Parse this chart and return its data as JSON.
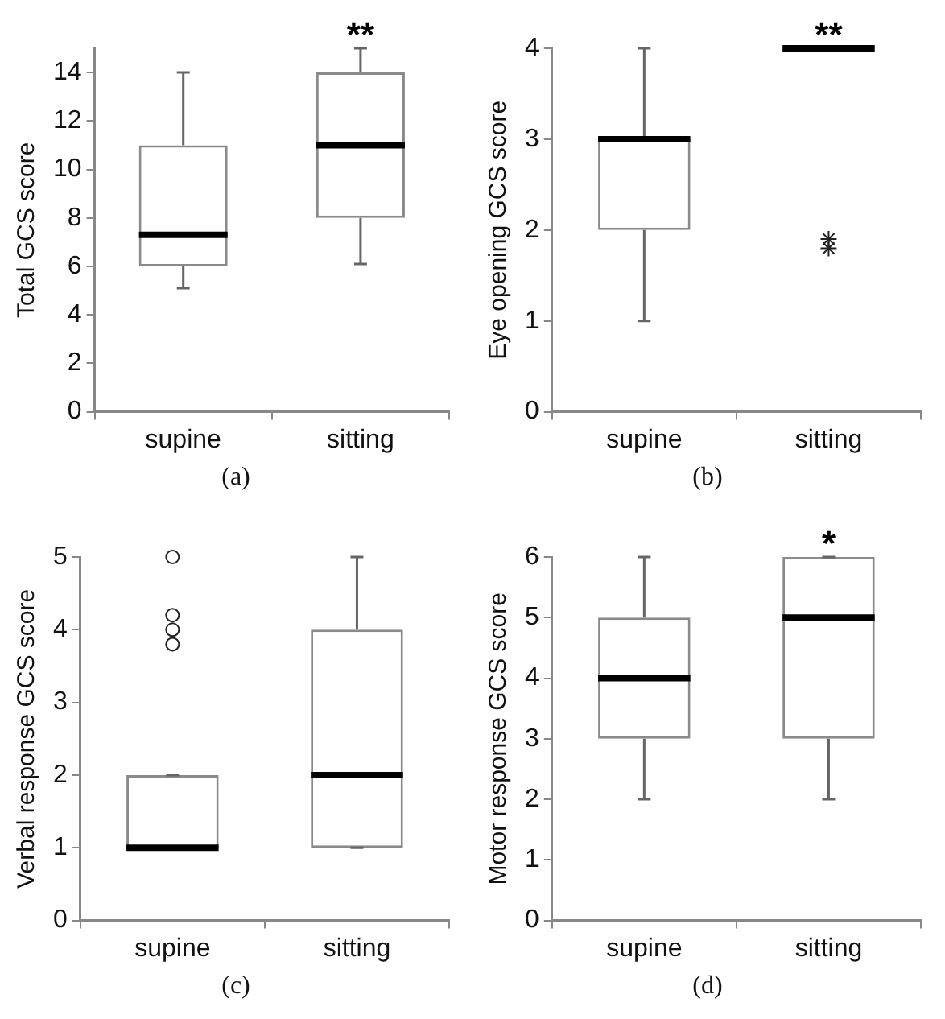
{
  "chart_data": [
    {
      "type": "box",
      "ylabel": "Total GCS score",
      "categories": [
        "supine",
        "sitting"
      ],
      "ylim": [
        0,
        15
      ],
      "yticks": [
        0,
        2,
        4,
        6,
        8,
        10,
        12,
        14
      ],
      "grid": false,
      "legend": false,
      "boxes": [
        {
          "low": 5.1,
          "q1": 6,
          "median": 7.3,
          "q3": 11,
          "high": 14
        },
        {
          "low": 6.1,
          "q1": 8,
          "median": 11,
          "q3": 14,
          "high": 15
        }
      ],
      "annotations": [
        "**",
        "(a)"
      ]
    },
    {
      "type": "box",
      "ylabel": "Eye opening GCS score",
      "categories": [
        "supine",
        "sitting"
      ],
      "ylim": [
        0,
        4
      ],
      "yticks": [
        0,
        1,
        2,
        3,
        4
      ],
      "grid": false,
      "legend": false,
      "marker": "star",
      "boxes": [
        {
          "low": 1,
          "q1": 2,
          "median": 3,
          "q3": 3,
          "high": 4
        },
        {
          "low": 4,
          "q1": 4,
          "median": 4,
          "q3": 4,
          "high": 4,
          "outliers": [
            1.9,
            1.8
          ]
        }
      ],
      "annotations": [
        "**",
        "(b)"
      ]
    },
    {
      "type": "box",
      "ylabel": "Verbal response GCS score",
      "categories": [
        "supine",
        "sitting"
      ],
      "ylim": [
        0,
        5
      ],
      "yticks": [
        0,
        1,
        2,
        3,
        4,
        5
      ],
      "grid": false,
      "legend": false,
      "marker": "circle",
      "boxes": [
        {
          "low": 1,
          "q1": 1,
          "median": 1,
          "q3": 2,
          "high": 2,
          "outliers": [
            5,
            4.2,
            4,
            3.8
          ]
        },
        {
          "low": 1,
          "q1": 1,
          "median": 2,
          "q3": 4,
          "high": 5
        }
      ],
      "annotations": [
        "(c)"
      ]
    },
    {
      "type": "box",
      "ylabel": "Motor response GCS score",
      "categories": [
        "supine",
        "sitting"
      ],
      "ylim": [
        0,
        6
      ],
      "yticks": [
        0,
        1,
        2,
        3,
        4,
        5,
        6
      ],
      "grid": false,
      "legend": false,
      "boxes": [
        {
          "low": 2,
          "q1": 3,
          "median": 4,
          "q3": 5,
          "high": 6
        },
        {
          "low": 2,
          "q1": 3,
          "median": 5,
          "q3": 6,
          "high": 6
        }
      ],
      "annotations": [
        "*",
        "(d)"
      ]
    }
  ]
}
